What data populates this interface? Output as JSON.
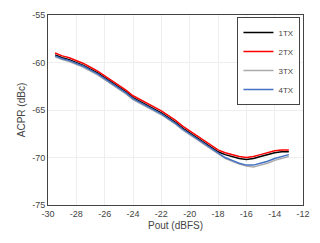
{
  "chart_data": {
    "type": "line",
    "xlabel": "Pout (dBFS)",
    "ylabel": "ACPR (dBc)",
    "x": [
      -29.5,
      -29.0,
      -28.5,
      -28.0,
      -27.5,
      -27.0,
      -26.5,
      -26.0,
      -25.5,
      -25.0,
      -24.5,
      -24.0,
      -23.5,
      -23.0,
      -22.5,
      -22.0,
      -21.5,
      -21.0,
      -20.5,
      -20.0,
      -19.5,
      -19.0,
      -18.5,
      -18.0,
      -17.5,
      -17.0,
      -16.5,
      -16.0,
      -15.5,
      -15.0,
      -14.5,
      -14.0,
      -13.5,
      -13.0
    ],
    "series": [
      {
        "name": "1TX",
        "color": "#000000",
        "values": [
          -59.2,
          -59.5,
          -59.7,
          -60.0,
          -60.3,
          -60.7,
          -61.1,
          -61.6,
          -62.1,
          -62.6,
          -63.1,
          -63.7,
          -64.1,
          -64.5,
          -64.9,
          -65.3,
          -65.8,
          -66.3,
          -66.9,
          -67.4,
          -67.9,
          -68.4,
          -68.9,
          -69.4,
          -69.7,
          -69.9,
          -70.1,
          -70.2,
          -70.1,
          -69.9,
          -69.7,
          -69.5,
          -69.4,
          -69.4
        ]
      },
      {
        "name": "2TX",
        "color": "#ff0000",
        "values": [
          -59.0,
          -59.3,
          -59.5,
          -59.8,
          -60.1,
          -60.5,
          -60.9,
          -61.4,
          -61.9,
          -62.4,
          -62.9,
          -63.5,
          -63.9,
          -64.3,
          -64.7,
          -65.1,
          -65.6,
          -66.1,
          -66.7,
          -67.2,
          -67.7,
          -68.2,
          -68.7,
          -69.2,
          -69.5,
          -69.7,
          -69.9,
          -70.0,
          -69.9,
          -69.7,
          -69.5,
          -69.3,
          -69.2,
          -69.2
        ]
      },
      {
        "name": "3TX",
        "color": "#aaaaaa",
        "values": [
          -59.4,
          -59.7,
          -59.9,
          -60.2,
          -60.5,
          -60.9,
          -61.3,
          -61.8,
          -62.3,
          -62.8,
          -63.3,
          -63.9,
          -64.3,
          -64.7,
          -65.1,
          -65.5,
          -66.0,
          -66.5,
          -67.1,
          -67.6,
          -68.1,
          -68.6,
          -69.1,
          -69.6,
          -70.1,
          -70.4,
          -70.7,
          -70.9,
          -71.0,
          -70.8,
          -70.6,
          -70.3,
          -70.1,
          -69.9
        ]
      },
      {
        "name": "4TX",
        "color": "#4472c4",
        "values": [
          -59.3,
          -59.6,
          -59.8,
          -60.1,
          -60.4,
          -60.8,
          -61.2,
          -61.7,
          -62.2,
          -62.7,
          -63.2,
          -63.8,
          -64.2,
          -64.6,
          -65.0,
          -65.4,
          -65.9,
          -66.4,
          -67.0,
          -67.5,
          -68.0,
          -68.5,
          -69.0,
          -69.5,
          -70.0,
          -70.3,
          -70.6,
          -70.8,
          -70.8,
          -70.6,
          -70.4,
          -70.1,
          -69.9,
          -69.7
        ]
      }
    ],
    "xlim": [
      -30,
      -12
    ],
    "ylim": [
      -75,
      -55
    ],
    "xticks": [
      -30,
      -28,
      -26,
      -24,
      -22,
      -20,
      -18,
      -16,
      -14,
      -12
    ],
    "yticks": [
      -75,
      -70,
      -65,
      -60,
      -55
    ],
    "grid": true,
    "legend": "upper right"
  }
}
